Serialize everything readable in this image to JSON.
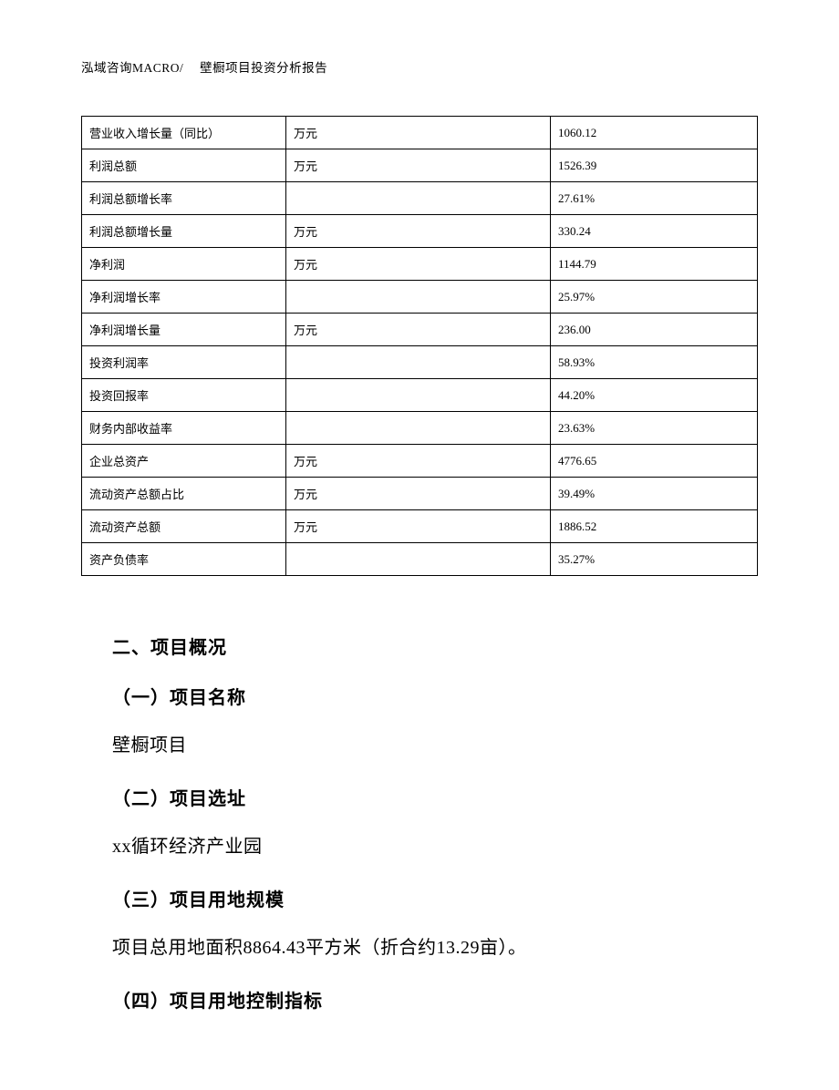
{
  "header": "泓域咨询MACRO/　 壁橱项目投资分析报告",
  "table": {
    "rows": [
      {
        "label": "营业收入增长量（同比）",
        "unit": "万元",
        "value": "1060.12"
      },
      {
        "label": "利润总额",
        "unit": "万元",
        "value": "1526.39"
      },
      {
        "label": "利润总额增长率",
        "unit": "",
        "value": "27.61%"
      },
      {
        "label": "利润总额增长量",
        "unit": "万元",
        "value": "330.24"
      },
      {
        "label": "净利润",
        "unit": "万元",
        "value": "1144.79"
      },
      {
        "label": "净利润增长率",
        "unit": "",
        "value": "25.97%"
      },
      {
        "label": "净利润增长量",
        "unit": "万元",
        "value": "236.00"
      },
      {
        "label": "投资利润率",
        "unit": "",
        "value": "58.93%"
      },
      {
        "label": "投资回报率",
        "unit": "",
        "value": "44.20%"
      },
      {
        "label": "财务内部收益率",
        "unit": "",
        "value": "23.63%"
      },
      {
        "label": "企业总资产",
        "unit": "万元",
        "value": "4776.65"
      },
      {
        "label": "流动资产总额占比",
        "unit": "万元",
        "value": "39.49%"
      },
      {
        "label": "流动资产总额",
        "unit": "万元",
        "value": "1886.52"
      },
      {
        "label": "资产负债率",
        "unit": "",
        "value": "35.27%"
      }
    ],
    "border_color": "#000000",
    "cell_font_size": 13,
    "text_color": "#000000"
  },
  "sections": {
    "main_title": "二、项目概况",
    "sub1_title": "（一）项目名称",
    "sub1_body": "壁橱项目",
    "sub2_title": "（二）项目选址",
    "sub2_body": "xx循环经济产业园",
    "sub3_title": "（三）项目用地规模",
    "sub3_body": "项目总用地面积8864.43平方米（折合约13.29亩）。",
    "sub4_title": "（四）项目用地控制指标"
  },
  "style": {
    "background_color": "#ffffff",
    "heading_font": "SimHei",
    "body_font": "SimSun",
    "heading_fontsize": 20,
    "body_fontsize": 20,
    "header_fontsize": 13.5
  }
}
